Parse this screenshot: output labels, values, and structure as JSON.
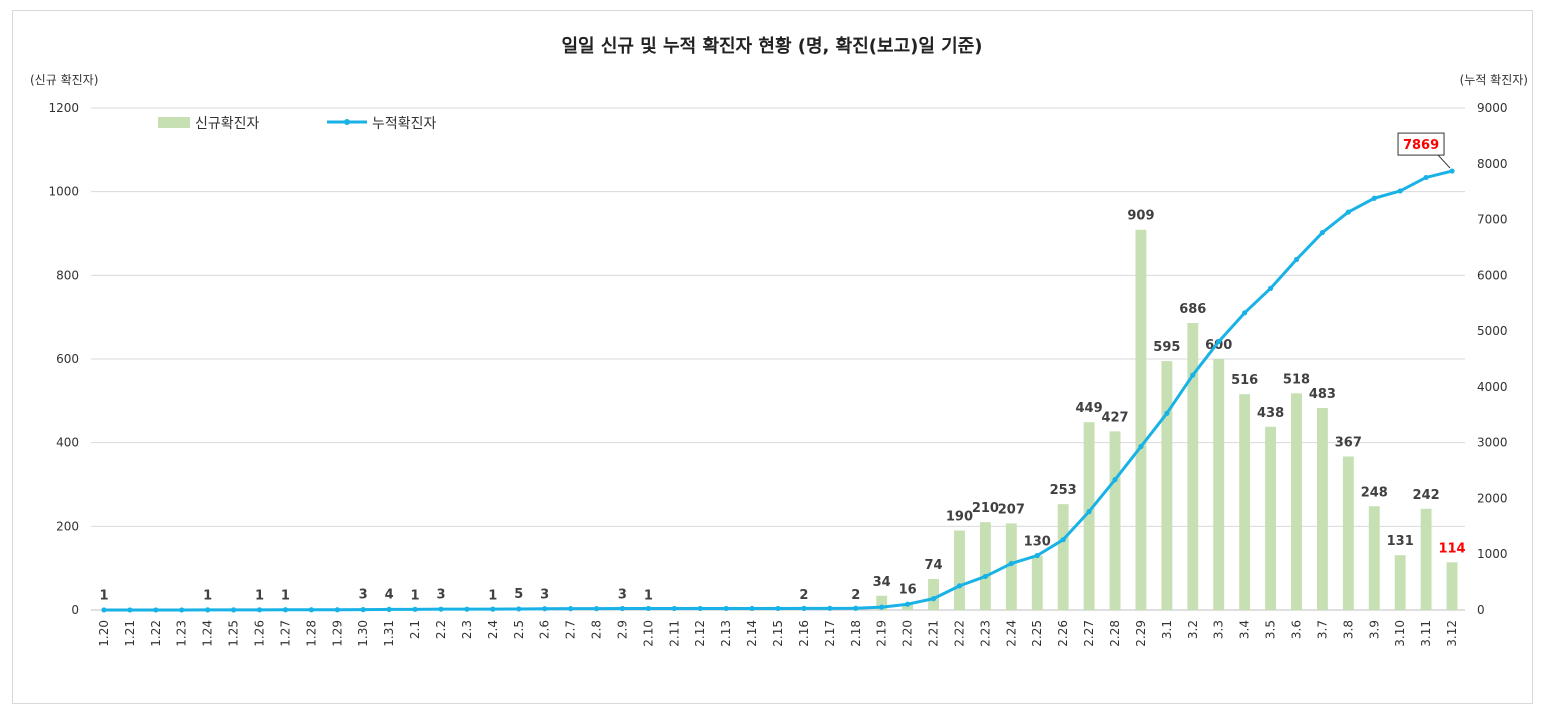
{
  "chart_data": {
    "type": "bar+line",
    "title": "일일 신규 및 누적 확진자 현황 (명, 확진(보고)일 기준)",
    "ylabel_left": "(신규 확진자)",
    "ylabel_right": "(누적 확진자)",
    "ylim_left": [
      0,
      1200
    ],
    "ylim_right": [
      0,
      9000
    ],
    "yticks_left": [
      0,
      200,
      400,
      600,
      800,
      1000,
      1200
    ],
    "yticks_right": [
      0,
      1000,
      2000,
      3000,
      4000,
      5000,
      6000,
      7000,
      8000,
      9000
    ],
    "grid": true,
    "legend": [
      {
        "name": "신규확진자",
        "kind": "bar",
        "color": "#c6e0b4"
      },
      {
        "name": "누적확진자",
        "kind": "line",
        "color": "#19b2e6"
      }
    ],
    "categories": [
      "1.20",
      "1.21",
      "1.22",
      "1.23",
      "1.24",
      "1.25",
      "1.26",
      "1.27",
      "1.28",
      "1.29",
      "1.30",
      "1.31",
      "2.1",
      "2.2",
      "2.3",
      "2.4",
      "2.5",
      "2.6",
      "2.7",
      "2.8",
      "2.9",
      "2.10",
      "2.11",
      "2.12",
      "2.13",
      "2.14",
      "2.15",
      "2.16",
      "2.17",
      "2.18",
      "2.19",
      "2.20",
      "2.21",
      "2.22",
      "2.23",
      "2.24",
      "2.25",
      "2.26",
      "2.27",
      "2.28",
      "2.29",
      "3.1",
      "3.2",
      "3.3",
      "3.4",
      "3.5",
      "3.6",
      "3.7",
      "3.8",
      "3.9",
      "3.10",
      "3.11",
      "3.12"
    ],
    "series": [
      {
        "name": "신규확진자",
        "axis": "left",
        "values": [
          1,
          0,
          0,
          0,
          1,
          0,
          1,
          1,
          0,
          0,
          3,
          4,
          1,
          3,
          0,
          1,
          5,
          3,
          0,
          0,
          3,
          1,
          0,
          0,
          0,
          0,
          0,
          2,
          0,
          2,
          34,
          16,
          74,
          190,
          210,
          207,
          130,
          253,
          449,
          427,
          909,
          595,
          686,
          600,
          516,
          438,
          518,
          483,
          367,
          248,
          131,
          242,
          114
        ],
        "labels": [
          "1",
          "",
          "",
          "",
          "1",
          "",
          "1",
          "1",
          "",
          "",
          "3",
          "4",
          "1",
          "3",
          "",
          "1",
          "5",
          "3",
          "",
          "",
          "3",
          "1",
          "",
          "",
          "",
          "",
          "",
          "2",
          "",
          "2",
          "34",
          "16",
          "74",
          "190",
          "210",
          "207",
          "130",
          "253",
          "449",
          "427",
          "909",
          "595",
          "686",
          "600",
          "516",
          "438",
          "518",
          "483",
          "367",
          "248",
          "131",
          "242",
          "114"
        ]
      },
      {
        "name": "누적확진자",
        "axis": "right",
        "values": [
          1,
          1,
          1,
          1,
          2,
          2,
          3,
          4,
          4,
          4,
          7,
          11,
          12,
          15,
          15,
          16,
          19,
          23,
          24,
          24,
          27,
          28,
          28,
          28,
          28,
          28,
          28,
          29,
          30,
          31,
          51,
          104,
          204,
          433,
          602,
          833,
          977,
          1261,
          1766,
          2337,
          2931,
          3526,
          4212,
          4812,
          5328,
          5766,
          6284,
          6767,
          7134,
          7382,
          7513,
          7755,
          7869
        ]
      }
    ],
    "callouts": [
      {
        "text": "7869",
        "color": "#ff0000"
      },
      {
        "text": "114",
        "color": "#ff0000"
      }
    ]
  }
}
